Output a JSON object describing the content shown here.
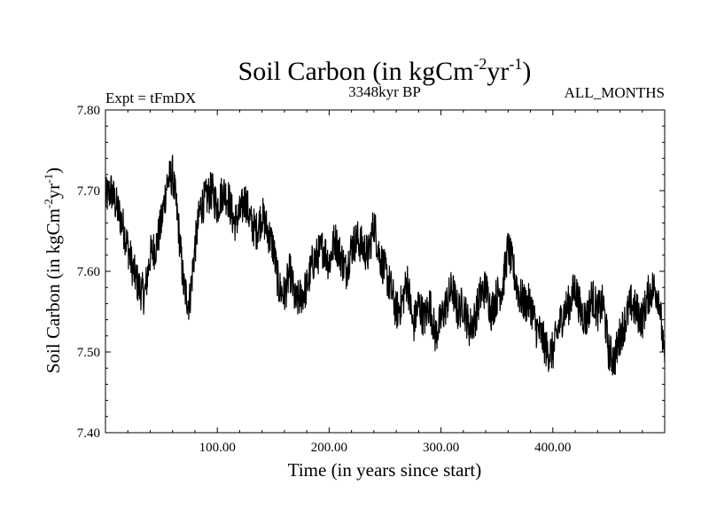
{
  "chart_data": {
    "type": "line",
    "title": {
      "prefix": "Soil Carbon (in kgCm",
      "sup1": "-2",
      "mid": "yr",
      "sup2": "-1",
      "suffix": ")"
    },
    "left_note": "Expt = tFmDX",
    "center_note": "3348kyr BP",
    "right_note": "ALL_MONTHS",
    "xlabel": "Time (in years since start)",
    "ylabel": {
      "prefix": "Soil Carbon (in kgCm",
      "sup1": "-2",
      "mid": "yr",
      "sup2": "-1",
      "suffix": ")"
    },
    "xlim": [
      0,
      500
    ],
    "ylim": [
      7.4,
      7.8
    ],
    "x_ticks": [
      {
        "value": 100,
        "label": "100.00"
      },
      {
        "value": 200,
        "label": "200.00"
      },
      {
        "value": 300,
        "label": "300.00"
      },
      {
        "value": 400,
        "label": "400.00"
      }
    ],
    "y_ticks": [
      {
        "value": 7.4,
        "label": "7.40"
      },
      {
        "value": 7.5,
        "label": "7.50"
      },
      {
        "value": 7.6,
        "label": "7.60"
      },
      {
        "value": 7.7,
        "label": "7.70"
      },
      {
        "value": 7.8,
        "label": "7.80"
      }
    ],
    "grid": false,
    "line_color": "#000000",
    "series": [
      {
        "name": "",
        "x": [
          0,
          5,
          10,
          15,
          20,
          25,
          30,
          35,
          40,
          45,
          50,
          55,
          60,
          65,
          70,
          75,
          80,
          85,
          90,
          95,
          100,
          105,
          110,
          115,
          120,
          125,
          130,
          135,
          140,
          145,
          150,
          155,
          160,
          165,
          170,
          175,
          180,
          185,
          190,
          195,
          200,
          205,
          210,
          215,
          220,
          225,
          230,
          235,
          240,
          245,
          250,
          255,
          260,
          265,
          270,
          275,
          280,
          285,
          290,
          295,
          300,
          305,
          310,
          315,
          320,
          325,
          330,
          335,
          340,
          345,
          350,
          355,
          360,
          365,
          370,
          375,
          380,
          385,
          390,
          395,
          400,
          405,
          410,
          415,
          420,
          425,
          430,
          435,
          440,
          445,
          450,
          455,
          460,
          465,
          470,
          475,
          480,
          485,
          490,
          495,
          500
        ],
        "values": [
          7.69,
          7.7,
          7.68,
          7.66,
          7.63,
          7.6,
          7.58,
          7.57,
          7.62,
          7.63,
          7.66,
          7.71,
          7.72,
          7.66,
          7.58,
          7.56,
          7.63,
          7.68,
          7.69,
          7.7,
          7.68,
          7.7,
          7.69,
          7.66,
          7.67,
          7.69,
          7.66,
          7.65,
          7.67,
          7.65,
          7.63,
          7.58,
          7.57,
          7.6,
          7.56,
          7.57,
          7.58,
          7.61,
          7.62,
          7.63,
          7.61,
          7.64,
          7.62,
          7.6,
          7.63,
          7.64,
          7.63,
          7.62,
          7.66,
          7.62,
          7.6,
          7.58,
          7.55,
          7.56,
          7.59,
          7.53,
          7.56,
          7.54,
          7.56,
          7.52,
          7.54,
          7.56,
          7.58,
          7.55,
          7.56,
          7.53,
          7.54,
          7.57,
          7.58,
          7.55,
          7.57,
          7.58,
          7.63,
          7.6,
          7.57,
          7.56,
          7.56,
          7.53,
          7.52,
          7.5,
          7.5,
          7.53,
          7.55,
          7.56,
          7.58,
          7.55,
          7.54,
          7.57,
          7.55,
          7.56,
          7.5,
          7.49,
          7.52,
          7.54,
          7.56,
          7.55,
          7.54,
          7.57,
          7.58,
          7.57,
          7.48
        ]
      }
    ]
  }
}
